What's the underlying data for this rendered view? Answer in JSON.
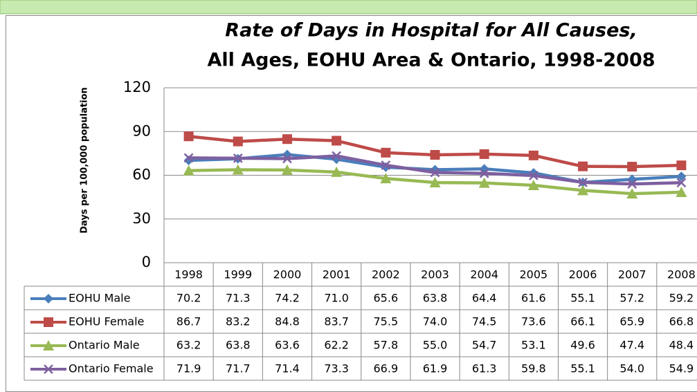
{
  "chart_data": {
    "type": "line",
    "title": [
      "Rate of Days in Hospital for All Causes,",
      "All Ages, EOHU Area & Ontario, 1998-2008"
    ],
    "y_label": "Days per 100,000 population",
    "categories": [
      "1998",
      "1999",
      "2000",
      "2001",
      "2002",
      "2003",
      "2004",
      "2005",
      "2006",
      "2007",
      "2008"
    ],
    "ylim": [
      0,
      120
    ],
    "yticks": [
      0,
      30,
      60,
      90,
      120
    ],
    "grid": true,
    "series": [
      {
        "name": "EOHU Male",
        "color": "#4a7ebb",
        "marker": "diamond",
        "values": [
          70.2,
          71.3,
          74.2,
          71.0,
          65.6,
          63.8,
          64.4,
          61.6,
          55.1,
          57.2,
          59.2
        ],
        "value_labels": [
          "70.2",
          "71.3",
          "74.2",
          "71.0",
          "65.6",
          "63.8",
          "64.4",
          "61.6",
          "55.1",
          "57.2",
          "59.2"
        ]
      },
      {
        "name": "EOHU Female",
        "color": "#be4b48",
        "marker": "square",
        "values": [
          86.7,
          83.2,
          84.8,
          83.7,
          75.5,
          74.0,
          74.5,
          73.6,
          66.1,
          65.9,
          66.8
        ],
        "value_labels": [
          "86.7",
          "83.2",
          "84.8",
          "83.7",
          "75.5",
          "74.0",
          "74.5",
          "73.6",
          "66.1",
          "65.9",
          "66.8"
        ]
      },
      {
        "name": "Ontario Male",
        "color": "#98b954",
        "marker": "triangle",
        "values": [
          63.2,
          63.8,
          63.6,
          62.2,
          57.8,
          55.0,
          54.7,
          53.1,
          49.6,
          47.4,
          48.4
        ],
        "value_labels": [
          "63.2",
          "63.8",
          "63.6",
          "62.2",
          "57.8",
          "55.0",
          "54.7",
          "53.1",
          "49.6",
          "47.4",
          "48.4"
        ]
      },
      {
        "name": "Ontario Female",
        "color": "#7d60a0",
        "marker": "x",
        "values": [
          71.9,
          71.7,
          71.4,
          73.3,
          66.9,
          61.9,
          61.3,
          59.8,
          55.1,
          54.0,
          54.9
        ],
        "value_labels": [
          "71.9",
          "71.7",
          "71.4",
          "73.3",
          "66.9",
          "61.9",
          "61.3",
          "59.8",
          "55.1",
          "54.0",
          "54.9"
        ]
      }
    ]
  }
}
